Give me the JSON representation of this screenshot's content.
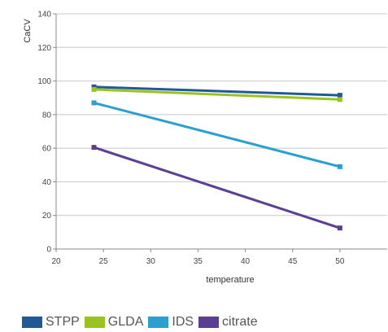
{
  "chart_data": {
    "type": "line",
    "title": "",
    "xlabel": "temperature",
    "ylabel": "CaCV",
    "xlim": [
      20,
      55
    ],
    "ylim": [
      0,
      140
    ],
    "xticks": [
      20,
      25,
      30,
      35,
      40,
      45,
      50
    ],
    "yticks": [
      0,
      20,
      40,
      60,
      80,
      100,
      120,
      140
    ],
    "grid": "horizontal",
    "legend_position": "bottom-left",
    "series": [
      {
        "name": "STPP",
        "color": "#1f5a96",
        "x": [
          24,
          50
        ],
        "y": [
          96.5,
          91.5
        ]
      },
      {
        "name": "GLDA",
        "color": "#9bc31f",
        "x": [
          24,
          50
        ],
        "y": [
          95,
          89
        ]
      },
      {
        "name": "IDS",
        "color": "#2a9fd0",
        "x": [
          24,
          50
        ],
        "y": [
          87,
          49
        ]
      },
      {
        "name": "citrate",
        "color": "#5c3f91",
        "x": [
          24,
          50
        ],
        "y": [
          60.5,
          12.5
        ]
      }
    ]
  }
}
